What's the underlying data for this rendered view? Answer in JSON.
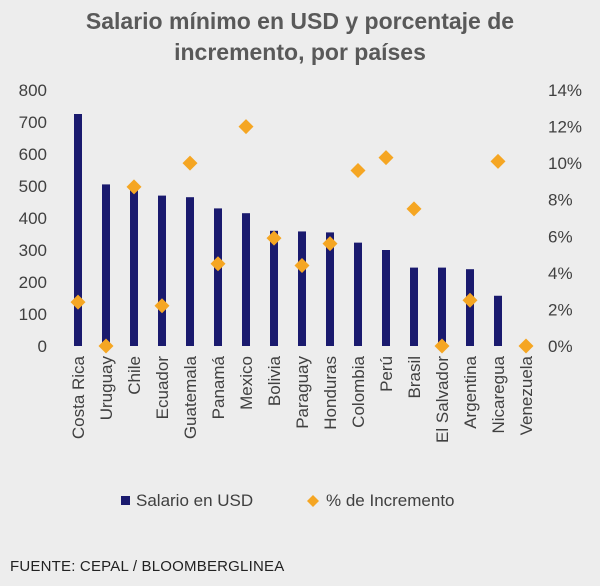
{
  "chart_data": {
    "type": "bar",
    "title_line1": "Salario mínimo en USD y porcentaje de",
    "title_line2": "incremento, por países",
    "categories": [
      "Costa Rica",
      "Uruguay",
      "Chile",
      "Ecuador",
      "Guatemala",
      "Panamá",
      "Mexico",
      "Bolivia",
      "Paraguay",
      "Honduras",
      "Colombia",
      "Perú",
      "Brasil",
      "El Salvador",
      "Argentina",
      "Nicaregua",
      "Venezuela"
    ],
    "series": [
      {
        "name": "Salario en USD",
        "type": "bar",
        "axis": "left",
        "color": "#1a1a6e",
        "values": [
          725,
          505,
          500,
          470,
          465,
          430,
          415,
          360,
          358,
          355,
          323,
          300,
          245,
          245,
          240,
          157,
          0
        ]
      },
      {
        "name": "% de Incremento",
        "type": "scatter",
        "axis": "right",
        "color": "#f5a623",
        "values": [
          2.4,
          0,
          8.7,
          2.2,
          10.0,
          4.5,
          12.0,
          5.9,
          4.4,
          5.6,
          9.6,
          10.3,
          7.5,
          0,
          2.5,
          10.1,
          0
        ]
      }
    ],
    "y_left": {
      "min": 0,
      "max": 800,
      "ticks": [
        0,
        100,
        200,
        300,
        400,
        500,
        600,
        700,
        800
      ]
    },
    "y_right": {
      "min": 0,
      "max": 14,
      "ticks": [
        0,
        2,
        4,
        6,
        8,
        10,
        12,
        14
      ],
      "tick_suffix": "%"
    },
    "legend_position": "bottom",
    "grid": false
  },
  "source_text": "FUENTE: CEPAL / BLOOMBERGLINEA"
}
